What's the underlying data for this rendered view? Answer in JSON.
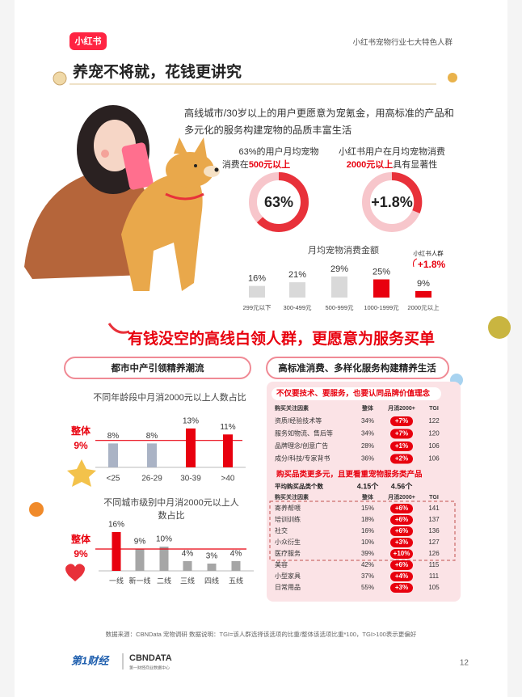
{
  "header": {
    "logo": "小红书",
    "series_title": "小红书宠物行业七大特色人群"
  },
  "title": "养宠不将就，花钱更讲究",
  "intro": "高线城市/30岁以上的用户更愿意为宠氪金，用高标准的产品和多元化的服务构建宠物的品质丰富生活",
  "stats": [
    {
      "lines": [
        "63%的用户月均宠物",
        "消费在",
        "500元以上"
      ]
    },
    {
      "lines": [
        "小红书用户在月均宠物消费",
        "2000元以上",
        "具有显著性"
      ],
      "label": "+1.8%"
    }
  ],
  "chart_data": [
    {
      "type": "donut",
      "values": [
        63
      ],
      "value_labels": [
        "63%"
      ],
      "color": "#e8313a"
    },
    {
      "type": "bar",
      "title": "月均宠物消费金额",
      "categories": [
        "299元以下",
        "300-499元",
        "500-999元",
        "1000-1999元",
        "2000元以上"
      ],
      "values": [
        16,
        21,
        29,
        25,
        9
      ],
      "value_labels": [
        "16%",
        "21%",
        "29%",
        "25%",
        "9%"
      ],
      "colors": [
        "#d9d9d9",
        "#d9d9d9",
        "#d9d9d9",
        "#e8000e",
        "#e8000e"
      ],
      "annotations": [
        "小红书人群",
        "+1.8%"
      ]
    },
    {
      "type": "bar",
      "title": "不同年龄段中月消2000元以上人数占比",
      "categories": [
        "<25",
        "26-29",
        "30-39",
        ">40"
      ],
      "values": [
        8,
        8,
        13,
        11
      ],
      "value_labels": [
        "8%",
        "8%",
        "13%",
        "11%"
      ],
      "colors": [
        "#aab3c5",
        "#aab3c5",
        "#e8000e",
        "#e8000e"
      ],
      "reference": {
        "label": "整体",
        "value": 9,
        "value_label": "9%"
      }
    },
    {
      "type": "bar",
      "title": "不同城市级别中月消2000元以上人数占比",
      "categories": [
        "一线",
        "新一线",
        "二线",
        "三线",
        "四线",
        "五线"
      ],
      "values": [
        16,
        9,
        10,
        4,
        3,
        4
      ],
      "value_labels": [
        "16%",
        "9%",
        "10%",
        "4%",
        "3%",
        "4%"
      ],
      "colors": [
        "#e8000e",
        "#a6a6a6",
        "#a6a6a6",
        "#a6a6a6",
        "#a6a6a6",
        "#a6a6a6"
      ],
      "reference": {
        "label": "整体",
        "value": 9,
        "value_label": "9%"
      }
    }
  ],
  "headline": "有钱没空的高线白领人群，更愿意为服务买单",
  "tabs": [
    "都市中产引领精养潮流",
    "高标准消费、多样化服务构建精养生活"
  ],
  "tables": [
    {
      "heading": "不仅要技术、要服务，也要认同品牌价值理念",
      "columns": [
        "购买关注因素",
        "整体",
        "月消2000+",
        "TGI"
      ],
      "rows": [
        [
          "资质/经验技术等",
          "34%",
          "+7%",
          "122"
        ],
        [
          "服务如物流、售后等",
          "34%",
          "+7%",
          "120"
        ],
        [
          "品牌理念/创意广告",
          "28%",
          "+1%",
          "106"
        ],
        [
          "成分/科技/专家背书",
          "36%",
          "+2%",
          "106"
        ]
      ]
    },
    {
      "heading": "购买品类更多元，且更看重宠物服务类产品",
      "summary": [
        "平均购买品类个数",
        "4.15个",
        "4.56个"
      ],
      "columns": [
        "购买关注因素",
        "整体",
        "月消2000+",
        "TGI"
      ],
      "rows": [
        [
          "寄养帮喂",
          "15%",
          "+6%",
          "141"
        ],
        [
          "培训训练",
          "18%",
          "+6%",
          "137"
        ],
        [
          "社交",
          "16%",
          "+6%",
          "136"
        ],
        [
          "小众衍生",
          "10%",
          "+3%",
          "127"
        ],
        [
          "医疗服务",
          "39%",
          "+10%",
          "126"
        ],
        [
          "美容",
          "42%",
          "+6%",
          "115"
        ],
        [
          "小型家具",
          "37%",
          "+4%",
          "111"
        ],
        [
          "日常用品",
          "55%",
          "+3%",
          "105"
        ]
      ]
    }
  ],
  "footer": {
    "source": "数据来源：CBNData 宠物调研  数据说明：TGI=该人群选择该选项的比重/整体该选项比重*100，TGI>100表示更偏好",
    "logos": [
      "第1财经",
      "CBNDATA",
      "第一财经商业数据中心"
    ],
    "page_number": "12"
  }
}
